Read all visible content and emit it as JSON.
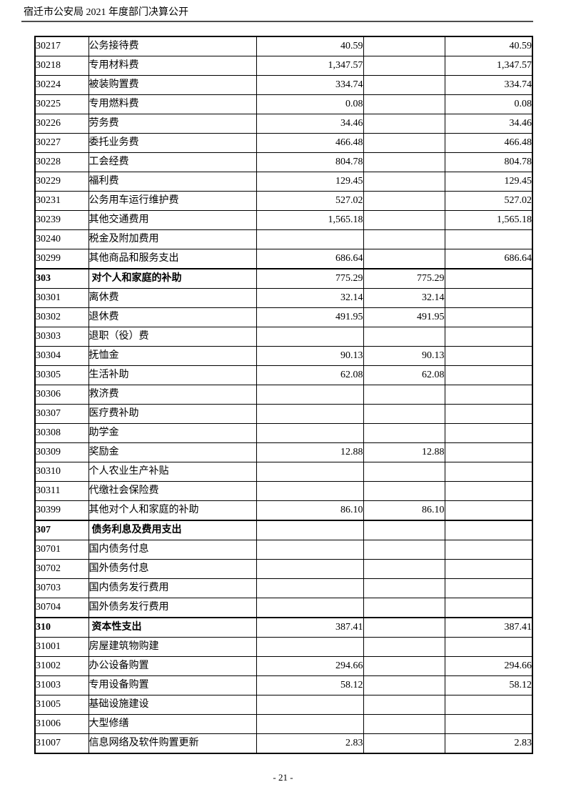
{
  "header": {
    "title": "宿迁市公安局 2021 年度部门决算公开"
  },
  "footer": {
    "page_number": "- 21 -"
  },
  "colors": {
    "background": "#ffffff",
    "text": "#000000",
    "table_border": "#000000",
    "header_rule": "#4d4d4d"
  },
  "table": {
    "rows": [
      {
        "code": "30217",
        "name": "公务接待费",
        "v1": "40.59",
        "v2": "",
        "v3": "40.59",
        "category": false
      },
      {
        "code": "30218",
        "name": "专用材料费",
        "v1": "1,347.57",
        "v2": "",
        "v3": "1,347.57",
        "category": false
      },
      {
        "code": "30224",
        "name": "被装购置费",
        "v1": "334.74",
        "v2": "",
        "v3": "334.74",
        "category": false
      },
      {
        "code": "30225",
        "name": "专用燃料费",
        "v1": "0.08",
        "v2": "",
        "v3": "0.08",
        "category": false
      },
      {
        "code": "30226",
        "name": "劳务费",
        "v1": "34.46",
        "v2": "",
        "v3": "34.46",
        "category": false
      },
      {
        "code": "30227",
        "name": "委托业务费",
        "v1": "466.48",
        "v2": "",
        "v3": "466.48",
        "category": false
      },
      {
        "code": "30228",
        "name": "工会经费",
        "v1": "804.78",
        "v2": "",
        "v3": "804.78",
        "category": false
      },
      {
        "code": "30229",
        "name": "福利费",
        "v1": "129.45",
        "v2": "",
        "v3": "129.45",
        "category": false
      },
      {
        "code": "30231",
        "name": "公务用车运行维护费",
        "v1": "527.02",
        "v2": "",
        "v3": "527.02",
        "category": false
      },
      {
        "code": "30239",
        "name": "其他交通费用",
        "v1": "1,565.18",
        "v2": "",
        "v3": "1,565.18",
        "category": false
      },
      {
        "code": "30240",
        "name": "税金及附加费用",
        "v1": "",
        "v2": "",
        "v3": "",
        "category": false
      },
      {
        "code": "30299",
        "name": "其他商品和服务支出",
        "v1": "686.64",
        "v2": "",
        "v3": "686.64",
        "category": false
      },
      {
        "code": "303",
        "name": "对个人和家庭的补助",
        "v1": "775.29",
        "v2": "775.29",
        "v3": "",
        "category": true
      },
      {
        "code": "30301",
        "name": "离休费",
        "v1": "32.14",
        "v2": "32.14",
        "v3": "",
        "category": false
      },
      {
        "code": "30302",
        "name": "退休费",
        "v1": "491.95",
        "v2": "491.95",
        "v3": "",
        "category": false
      },
      {
        "code": "30303",
        "name": "退职（役）费",
        "v1": "",
        "v2": "",
        "v3": "",
        "category": false
      },
      {
        "code": "30304",
        "name": "抚恤金",
        "v1": "90.13",
        "v2": "90.13",
        "v3": "",
        "category": false
      },
      {
        "code": "30305",
        "name": "生活补助",
        "v1": "62.08",
        "v2": "62.08",
        "v3": "",
        "category": false
      },
      {
        "code": "30306",
        "name": "救济费",
        "v1": "",
        "v2": "",
        "v3": "",
        "category": false
      },
      {
        "code": "30307",
        "name": "医疗费补助",
        "v1": "",
        "v2": "",
        "v3": "",
        "category": false
      },
      {
        "code": "30308",
        "name": "助学金",
        "v1": "",
        "v2": "",
        "v3": "",
        "category": false
      },
      {
        "code": "30309",
        "name": "奖励金",
        "v1": "12.88",
        "v2": "12.88",
        "v3": "",
        "category": false
      },
      {
        "code": "30310",
        "name": "个人农业生产补贴",
        "v1": "",
        "v2": "",
        "v3": "",
        "category": false
      },
      {
        "code": "30311",
        "name": "代缴社会保险费",
        "v1": "",
        "v2": "",
        "v3": "",
        "category": false
      },
      {
        "code": "30399",
        "name": "其他对个人和家庭的补助",
        "v1": "86.10",
        "v2": "86.10",
        "v3": "",
        "category": false
      },
      {
        "code": "307",
        "name": "债务利息及费用支出",
        "v1": "",
        "v2": "",
        "v3": "",
        "category": true
      },
      {
        "code": "30701",
        "name": "国内债务付息",
        "v1": "",
        "v2": "",
        "v3": "",
        "category": false
      },
      {
        "code": "30702",
        "name": "国外债务付息",
        "v1": "",
        "v2": "",
        "v3": "",
        "category": false
      },
      {
        "code": "30703",
        "name": "国内债务发行费用",
        "v1": "",
        "v2": "",
        "v3": "",
        "category": false
      },
      {
        "code": "30704",
        "name": "国外债务发行费用",
        "v1": "",
        "v2": "",
        "v3": "",
        "category": false
      },
      {
        "code": "310",
        "name": "资本性支出",
        "v1": "387.41",
        "v2": "",
        "v3": "387.41",
        "category": true
      },
      {
        "code": "31001",
        "name": "房屋建筑物购建",
        "v1": "",
        "v2": "",
        "v3": "",
        "category": false
      },
      {
        "code": "31002",
        "name": "办公设备购置",
        "v1": "294.66",
        "v2": "",
        "v3": "294.66",
        "category": false
      },
      {
        "code": "31003",
        "name": "专用设备购置",
        "v1": "58.12",
        "v2": "",
        "v3": "58.12",
        "category": false
      },
      {
        "code": "31005",
        "name": "基础设施建设",
        "v1": "",
        "v2": "",
        "v3": "",
        "category": false
      },
      {
        "code": "31006",
        "name": "大型修缮",
        "v1": "",
        "v2": "",
        "v3": "",
        "category": false
      },
      {
        "code": "31007",
        "name": "信息网络及软件购置更新",
        "v1": "2.83",
        "v2": "",
        "v3": "2.83",
        "category": false
      }
    ]
  }
}
